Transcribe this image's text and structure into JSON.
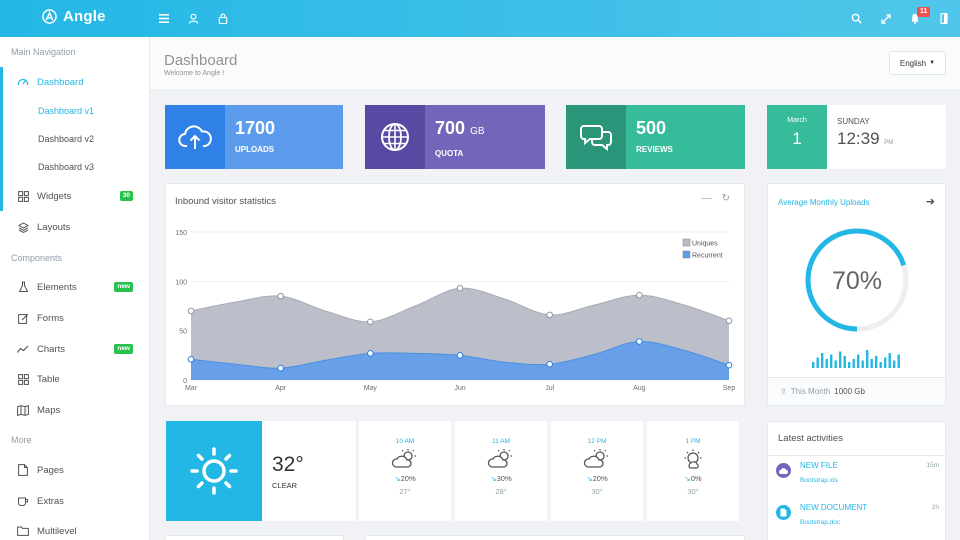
{
  "brand": {
    "name": "Angle"
  },
  "topbar": {
    "notification_count": "11"
  },
  "sidebar": {
    "main_heading": "Main Navigation",
    "dashboard": "Dashboard",
    "dashboard_v1": "Dashboard v1",
    "dashboard_v2": "Dashboard v2",
    "dashboard_v3": "Dashboard v3",
    "widgets": "Widgets",
    "widgets_badge": "30",
    "layouts": "Layouts",
    "components_heading": "Components",
    "elements": "Elements",
    "elements_badge": "new",
    "forms": "Forms",
    "charts": "Charts",
    "charts_badge": "new",
    "table": "Table",
    "maps": "Maps",
    "more_heading": "More",
    "pages": "Pages",
    "extras": "Extras",
    "multilevel": "Multilevel"
  },
  "header": {
    "title": "Dashboard",
    "subtitle": "Welcome to Angle !",
    "language": "English"
  },
  "stats": {
    "uploads": {
      "value": "1700",
      "label": "UPLOADS",
      "color": "#5d9cec",
      "dark": "#2f80e7"
    },
    "quota": {
      "value": "700",
      "unit": "GB",
      "label": "QUOTA",
      "color": "#7266ba",
      "dark": "#564aa3"
    },
    "reviews": {
      "value": "500",
      "label": "REVIEWS",
      "color": "#37bc9b",
      "dark": "#2b957a"
    }
  },
  "date": {
    "month": "March",
    "day": "1",
    "weekday": "SUNDAY",
    "time": "12:39",
    "ampm": "PM"
  },
  "chart_panel": {
    "title": "Inbound visitor statistics"
  },
  "chart_data": {
    "type": "area",
    "categories": [
      "Mar",
      "Apr",
      "May",
      "Jun",
      "Jul",
      "Aug",
      "Sep"
    ],
    "x": [
      0,
      1,
      2,
      3,
      4,
      5,
      6,
      7,
      8,
      9,
      10,
      11,
      12
    ],
    "series": [
      {
        "name": "Uniques",
        "color": "#b8bcc6",
        "values": [
          70,
          79,
          85,
          70,
          59,
          75,
          93,
          82,
          66,
          76,
          86,
          76,
          60
        ]
      },
      {
        "name": "Recurrent",
        "color": "#5d9cec",
        "values": [
          21,
          16,
          12,
          20,
          27,
          27,
          25,
          18,
          16,
          26,
          39,
          30,
          15
        ]
      }
    ],
    "marked_points": [
      0,
      2,
      4,
      6,
      8,
      10,
      12
    ],
    "ylim": [
      0,
      150
    ],
    "yticks": [
      "0",
      "50",
      "100",
      "150"
    ],
    "legend": "top-right",
    "grid": true
  },
  "avg_panel": {
    "title": "Average Monthly Uploads",
    "percent": 70,
    "percent_label": "70%",
    "footer_label": "This Month",
    "footer_value": "1000 Gb",
    "bars": [
      4,
      7,
      10,
      6,
      9,
      5,
      11,
      8,
      4,
      6,
      9,
      5,
      12,
      6,
      8,
      4,
      7,
      10,
      5,
      9
    ]
  },
  "weather": {
    "now": {
      "temp": "32°",
      "condition": "CLEAR"
    },
    "forecast": [
      {
        "time": "10 AM",
        "rain": "20%",
        "temp": "27°",
        "icon": "cloud-sun-icon"
      },
      {
        "time": "11 AM",
        "rain": "30%",
        "temp": "28°",
        "icon": "cloud-sun-icon"
      },
      {
        "time": "12 PM",
        "rain": "20%",
        "temp": "30°",
        "icon": "cloud-sun-icon"
      },
      {
        "time": "1 PM",
        "rain": "0%",
        "temp": "30°",
        "icon": "sun-cloud-icon"
      }
    ]
  },
  "activities": {
    "title": "Latest activities",
    "items": [
      {
        "name": "NEW FILE",
        "file": "Bootstrap.xls",
        "time": "15m",
        "color": "#7266ba"
      },
      {
        "name": "NEW DOCUMENT",
        "file": "Bootstrap.doc",
        "time": "2h",
        "color": "#23b7e5"
      }
    ]
  }
}
